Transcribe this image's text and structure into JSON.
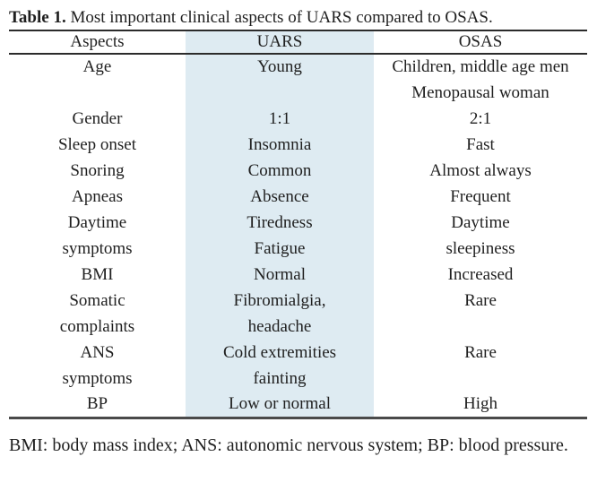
{
  "page": {
    "background": "#ffffff",
    "text_color": "#1f1f1f"
  },
  "table": {
    "title": {
      "label": "Table 1.",
      "text": "Most important clinical aspects of UARS compared to OSAS."
    },
    "columns": [
      {
        "key": "aspect",
        "label": "Aspects",
        "highlight": false
      },
      {
        "key": "uars",
        "label": "UARS",
        "highlight": true
      },
      {
        "key": "osas",
        "label": "OSAS",
        "highlight": false
      }
    ],
    "highlight_color": "#deebf2",
    "rule_color": "#2b2b2b",
    "rule_bottom_color": "#4a4a4a",
    "rows": [
      [
        "Age",
        "Young",
        "Children, middle age men"
      ],
      [
        "",
        "",
        "Menopausal woman"
      ],
      [
        "Gender",
        "1:1",
        "2:1"
      ],
      [
        "Sleep onset",
        "Insomnia",
        "Fast"
      ],
      [
        "Snoring",
        "Common",
        "Almost always"
      ],
      [
        "Apneas",
        "Absence",
        "Frequent"
      ],
      [
        "Daytime",
        "Tiredness",
        "Daytime"
      ],
      [
        "symptoms",
        "Fatigue",
        "sleepiness"
      ],
      [
        "BMI",
        "Normal",
        "Increased"
      ],
      [
        "Somatic",
        "Fibromialgia,",
        "Rare"
      ],
      [
        "complaints",
        "headache",
        ""
      ],
      [
        "ANS",
        "Cold extremities",
        "Rare"
      ],
      [
        "symptoms",
        "fainting",
        ""
      ],
      [
        "BP",
        "Low or normal",
        "High"
      ]
    ],
    "footnote": "BMI: body mass index; ANS: autonomic nervous system; BP: blood pressure."
  }
}
